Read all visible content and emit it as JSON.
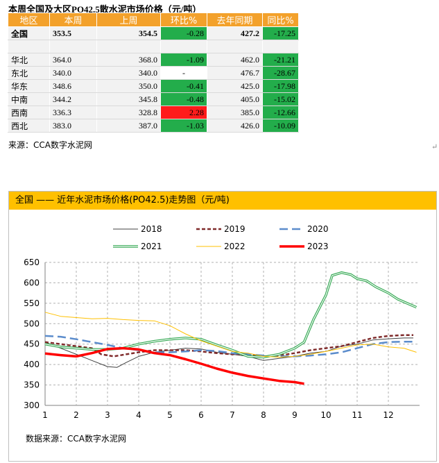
{
  "table": {
    "title": "本周全国及大区PO42.5散水泥市场价格（元/吨）",
    "headers": [
      "地区",
      "本周",
      "上周",
      "环比%",
      "去年同期",
      "同比%"
    ],
    "national": {
      "region": "全国",
      "this_week": "353.5",
      "last_week": "354.5",
      "wow": "-0.28",
      "last_year": "427.2",
      "yoy": "-17.25"
    },
    "rows": [
      {
        "region": "华北",
        "this_week": "364.0",
        "last_week": "368.0",
        "wow": "-1.09",
        "last_year": "462.0",
        "yoy": "-21.21"
      },
      {
        "region": "东北",
        "this_week": "340.0",
        "last_week": "340.0",
        "wow": "-",
        "last_year": "476.7",
        "yoy": "-28.67"
      },
      {
        "region": "华东",
        "this_week": "348.6",
        "last_week": "350.0",
        "wow": "-0.41",
        "last_year": "425.0",
        "yoy": "-17.98"
      },
      {
        "region": "中南",
        "this_week": "344.2",
        "last_week": "345.8",
        "wow": "-0.48",
        "last_year": "405.0",
        "yoy": "-15.02"
      },
      {
        "region": "西南",
        "this_week": "336.3",
        "last_week": "328.8",
        "wow": "2.28",
        "last_year": "385.0",
        "yoy": "-12.66"
      },
      {
        "region": "西北",
        "this_week": "383.0",
        "last_week": "387.0",
        "wow": "-1.03",
        "last_year": "426.0",
        "yoy": "-10.09"
      }
    ],
    "source": "来源：CCA数字水泥网"
  },
  "colors": {
    "header_orange": "#f3a12b",
    "green": "#23ad4b",
    "red": "#ff1b1b",
    "chart_header": "#ffc000"
  },
  "chart_data": {
    "type": "line",
    "title": "全国 —— 近年水泥市场价格(PO42.5)走势图（元/吨)",
    "source": "数据来源：CCA数字水泥网",
    "xlabel": "",
    "ylabel": "",
    "xlim": [
      1,
      13
    ],
    "ylim": [
      300,
      650
    ],
    "y_ticks": [
      300,
      350,
      400,
      450,
      500,
      550,
      600,
      650
    ],
    "x_ticks": [
      "1",
      "2",
      "3",
      "4",
      "5",
      "6",
      "7",
      "8",
      "9",
      "10",
      "11",
      "12"
    ],
    "grid": true,
    "legend_position": "top",
    "series": [
      {
        "name": "2018",
        "color": "#404040",
        "style": "solid",
        "width": 1,
        "points": [
          [
            1,
            455
          ],
          [
            1.5,
            440
          ],
          [
            2,
            425
          ],
          [
            2.5,
            410
          ],
          [
            3,
            395
          ],
          [
            3.3,
            393
          ],
          [
            3.6,
            405
          ],
          [
            4,
            420
          ],
          [
            4.5,
            430
          ],
          [
            5,
            435
          ],
          [
            5.5,
            440
          ],
          [
            6,
            438
          ],
          [
            6.5,
            430
          ],
          [
            7,
            425
          ],
          [
            7.5,
            420
          ],
          [
            8,
            410
          ],
          [
            8.5,
            415
          ],
          [
            9,
            420
          ],
          [
            9.5,
            428
          ],
          [
            10,
            432
          ],
          [
            10.5,
            445
          ],
          [
            11,
            450
          ],
          [
            11.5,
            460
          ],
          [
            12,
            463
          ],
          [
            12.5,
            465
          ],
          [
            12.8,
            465
          ]
        ]
      },
      {
        "name": "2019",
        "color": "#7f2a2a",
        "style": "dashed",
        "width": 2.5,
        "points": [
          [
            1,
            455
          ],
          [
            1.5,
            450
          ],
          [
            2,
            445
          ],
          [
            2.5,
            440
          ],
          [
            2.8,
            425
          ],
          [
            3.2,
            420
          ],
          [
            3.6,
            425
          ],
          [
            4,
            430
          ],
          [
            4.5,
            435
          ],
          [
            5,
            435
          ],
          [
            5.5,
            435
          ],
          [
            6,
            432
          ],
          [
            6.5,
            428
          ],
          [
            7,
            425
          ],
          [
            7.5,
            425
          ],
          [
            8,
            420
          ],
          [
            8.5,
            422
          ],
          [
            9,
            428
          ],
          [
            9.5,
            435
          ],
          [
            10,
            440
          ],
          [
            10.5,
            445
          ],
          [
            11,
            455
          ],
          [
            11.5,
            465
          ],
          [
            12,
            470
          ],
          [
            12.5,
            472
          ],
          [
            12.8,
            472
          ]
        ]
      },
      {
        "name": "2020",
        "color": "#5b8ccc",
        "style": "dashed-long",
        "width": 2.5,
        "points": [
          [
            1,
            470
          ],
          [
            1.5,
            468
          ],
          [
            2,
            462
          ],
          [
            2.5,
            455
          ],
          [
            3,
            448
          ],
          [
            3.5,
            440
          ],
          [
            4,
            435
          ],
          [
            4.5,
            430
          ],
          [
            5,
            430
          ],
          [
            5.5,
            432
          ],
          [
            6,
            435
          ],
          [
            6.5,
            433
          ],
          [
            7,
            428
          ],
          [
            7.5,
            425
          ],
          [
            8,
            422
          ],
          [
            8.5,
            420
          ],
          [
            9,
            420
          ],
          [
            9.5,
            422
          ],
          [
            10,
            425
          ],
          [
            10.5,
            430
          ],
          [
            11,
            440
          ],
          [
            11.5,
            450
          ],
          [
            12,
            455
          ],
          [
            12.5,
            456
          ],
          [
            12.8,
            456
          ]
        ]
      },
      {
        "name": "2021",
        "color": "#33a852",
        "style": "double",
        "width": 2.5,
        "points": [
          [
            1,
            450
          ],
          [
            1.5,
            443
          ],
          [
            2,
            440
          ],
          [
            2.5,
            437
          ],
          [
            3,
            437
          ],
          [
            3.5,
            440
          ],
          [
            4,
            450
          ],
          [
            4.5,
            457
          ],
          [
            5,
            462
          ],
          [
            5.5,
            465
          ],
          [
            6,
            462
          ],
          [
            6.5,
            448
          ],
          [
            7,
            435
          ],
          [
            7.5,
            420
          ],
          [
            8,
            418
          ],
          [
            8.5,
            425
          ],
          [
            9,
            440
          ],
          [
            9.3,
            455
          ],
          [
            9.6,
            510
          ],
          [
            10,
            570
          ],
          [
            10.2,
            618
          ],
          [
            10.5,
            625
          ],
          [
            10.8,
            620
          ],
          [
            11,
            610
          ],
          [
            11.3,
            605
          ],
          [
            11.6,
            590
          ],
          [
            12,
            575
          ],
          [
            12.3,
            560
          ],
          [
            12.6,
            550
          ],
          [
            12.9,
            540
          ]
        ]
      },
      {
        "name": "2022",
        "color": "#ffc000",
        "style": "solid",
        "width": 1,
        "points": [
          [
            1,
            528
          ],
          [
            1.5,
            518
          ],
          [
            2,
            515
          ],
          [
            2.5,
            512
          ],
          [
            3,
            513
          ],
          [
            3.5,
            510
          ],
          [
            4,
            508
          ],
          [
            4.5,
            507
          ],
          [
            5,
            495
          ],
          [
            5.5,
            475
          ],
          [
            6,
            458
          ],
          [
            6.5,
            445
          ],
          [
            7,
            432
          ],
          [
            7.5,
            428
          ],
          [
            8,
            420
          ],
          [
            8.5,
            418
          ],
          [
            9,
            420
          ],
          [
            9.5,
            425
          ],
          [
            10,
            432
          ],
          [
            10.5,
            440
          ],
          [
            11,
            448
          ],
          [
            11.5,
            450
          ],
          [
            12,
            443
          ],
          [
            12.5,
            440
          ],
          [
            12.9,
            430
          ]
        ]
      },
      {
        "name": "2023",
        "color": "#ff0000",
        "style": "solid",
        "width": 3.5,
        "points": [
          [
            1,
            427
          ],
          [
            1.5,
            423
          ],
          [
            2,
            420
          ],
          [
            2.5,
            428
          ],
          [
            3,
            438
          ],
          [
            3.5,
            440
          ],
          [
            4,
            437
          ],
          [
            4.5,
            428
          ],
          [
            5,
            423
          ],
          [
            5.5,
            413
          ],
          [
            6,
            402
          ],
          [
            6.5,
            390
          ],
          [
            7,
            380
          ],
          [
            7.5,
            372
          ],
          [
            8,
            366
          ],
          [
            8.5,
            360
          ],
          [
            9,
            357
          ],
          [
            9.3,
            353
          ]
        ]
      }
    ]
  }
}
